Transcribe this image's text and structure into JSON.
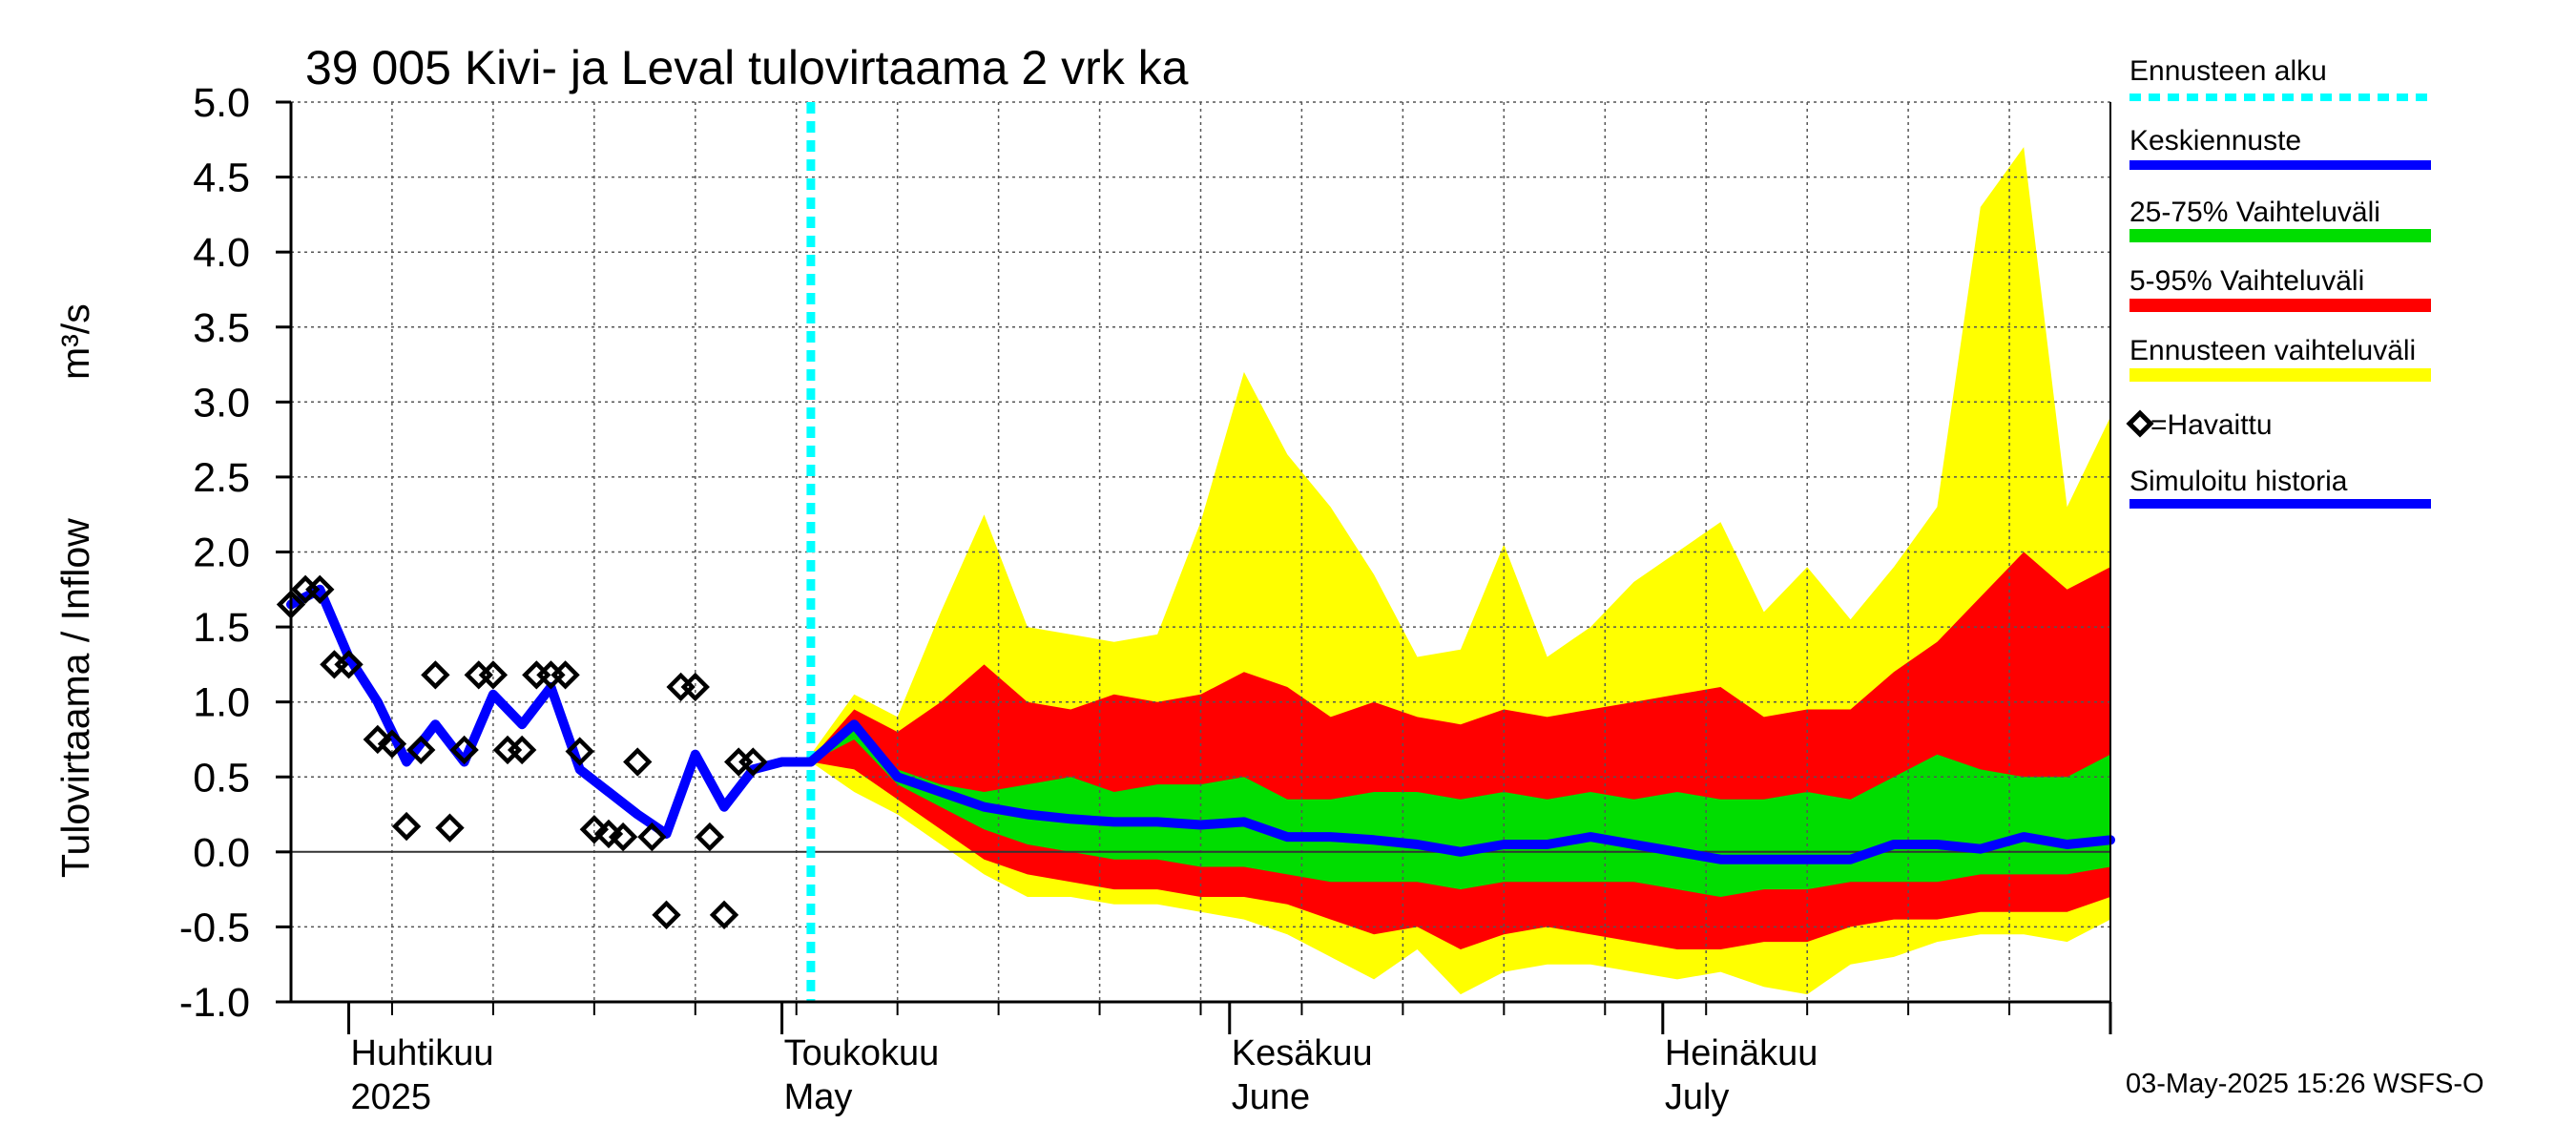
{
  "chart_data": {
    "type": "area",
    "title": "39 005 Kivi- ja Leval tulovirtaama 2 vrk ka",
    "ylabel": "Tulovirtaama / Inflow",
    "yunit": "m³/s",
    "ylim": [
      -1.0,
      5.0
    ],
    "yticks": [
      "5.0",
      "4.5",
      "4.0",
      "3.5",
      "3.0",
      "2.5",
      "2.0",
      "1.5",
      "1.0",
      "0.5",
      "0.0",
      "-0.5",
      "-1.0"
    ],
    "ytick_values": [
      5.0,
      4.5,
      4.0,
      3.5,
      3.0,
      2.5,
      2.0,
      1.5,
      1.0,
      0.5,
      0.0,
      -0.5,
      -1.0
    ],
    "xlim": [
      "2025-03-28",
      "2025-08-01"
    ],
    "month_labels": [
      {
        "date": "2025-04-01",
        "fi": "Huhtikuu",
        "en": "2025"
      },
      {
        "date": "2025-05-01",
        "fi": "Toukokuu",
        "en": "May"
      },
      {
        "date": "2025-06-01",
        "fi": "Kesäkuu",
        "en": "June"
      },
      {
        "date": "2025-07-01",
        "fi": "Heinäkuu",
        "en": "July"
      }
    ],
    "forecast_start": "2025-05-03",
    "grid": true,
    "legend_placement": "right",
    "legend": [
      {
        "label": "Ennusteen alku",
        "color": "#00ffff",
        "style": "dotted"
      },
      {
        "label": "Keskiennuste",
        "color": "#0000ff",
        "style": "line"
      },
      {
        "label": "25-75% Vaihteluväli",
        "color": "#00dd00",
        "style": "band"
      },
      {
        "label": "5-95% Vaihteluväli",
        "color": "#ff0000",
        "style": "band"
      },
      {
        "label": "Ennusteen vaihteluväli",
        "color": "#ffff00",
        "style": "band"
      },
      {
        "label": "=Havaittu",
        "color": "#000000",
        "style": "diamond"
      },
      {
        "label": "Simuloitu historia",
        "color": "#0000ff",
        "style": "line"
      }
    ],
    "footer": "03-May-2025 15:26 WSFS-O",
    "series": [
      {
        "name": "Ennusteen vaihteluväli",
        "type": "band",
        "color": "#ffff00",
        "x": [
          "2025-05-03",
          "2025-05-06",
          "2025-05-09",
          "2025-05-12",
          "2025-05-15",
          "2025-05-18",
          "2025-05-21",
          "2025-05-24",
          "2025-05-27",
          "2025-05-30",
          "2025-06-02",
          "2025-06-05",
          "2025-06-08",
          "2025-06-11",
          "2025-06-14",
          "2025-06-17",
          "2025-06-20",
          "2025-06-23",
          "2025-06-26",
          "2025-06-29",
          "2025-07-02",
          "2025-07-05",
          "2025-07-08",
          "2025-07-11",
          "2025-07-14",
          "2025-07-17",
          "2025-07-20",
          "2025-07-23",
          "2025-07-26",
          "2025-07-29",
          "2025-08-01"
        ],
        "low": [
          0.6,
          0.4,
          0.25,
          0.05,
          -0.15,
          -0.3,
          -0.3,
          -0.35,
          -0.35,
          -0.4,
          -0.45,
          -0.55,
          -0.7,
          -0.85,
          -0.65,
          -0.95,
          -0.8,
          -0.75,
          -0.75,
          -0.8,
          -0.85,
          -0.8,
          -0.9,
          -0.95,
          -0.75,
          -0.7,
          -0.6,
          -0.55,
          -0.55,
          -0.6,
          -0.45
        ],
        "high": [
          0.65,
          1.05,
          0.9,
          1.6,
          2.25,
          1.5,
          1.45,
          1.4,
          1.45,
          2.2,
          3.2,
          2.65,
          2.3,
          1.85,
          1.3,
          1.35,
          2.05,
          1.3,
          1.5,
          1.8,
          2.0,
          2.2,
          1.6,
          1.9,
          1.55,
          1.9,
          2.3,
          4.3,
          4.7,
          2.3,
          2.9
        ]
      },
      {
        "name": "5-95% Vaihteluväli",
        "type": "band",
        "color": "#ff0000",
        "x": [
          "2025-05-03",
          "2025-05-06",
          "2025-05-09",
          "2025-05-12",
          "2025-05-15",
          "2025-05-18",
          "2025-05-21",
          "2025-05-24",
          "2025-05-27",
          "2025-05-30",
          "2025-06-02",
          "2025-06-05",
          "2025-06-08",
          "2025-06-11",
          "2025-06-14",
          "2025-06-17",
          "2025-06-20",
          "2025-06-23",
          "2025-06-26",
          "2025-06-29",
          "2025-07-02",
          "2025-07-05",
          "2025-07-08",
          "2025-07-11",
          "2025-07-14",
          "2025-07-17",
          "2025-07-20",
          "2025-07-23",
          "2025-07-26",
          "2025-07-29",
          "2025-08-01"
        ],
        "low": [
          0.6,
          0.55,
          0.35,
          0.15,
          -0.05,
          -0.15,
          -0.2,
          -0.25,
          -0.25,
          -0.3,
          -0.3,
          -0.35,
          -0.45,
          -0.55,
          -0.5,
          -0.65,
          -0.55,
          -0.5,
          -0.55,
          -0.6,
          -0.65,
          -0.65,
          -0.6,
          -0.6,
          -0.5,
          -0.45,
          -0.45,
          -0.4,
          -0.4,
          -0.4,
          -0.3
        ],
        "high": [
          0.62,
          0.95,
          0.8,
          1.0,
          1.25,
          1.0,
          0.95,
          1.05,
          1.0,
          1.05,
          1.2,
          1.1,
          0.9,
          1.0,
          0.9,
          0.85,
          0.95,
          0.9,
          0.95,
          1.0,
          1.05,
          1.1,
          0.9,
          0.95,
          0.95,
          1.2,
          1.4,
          1.7,
          2.0,
          1.75,
          1.9
        ]
      },
      {
        "name": "25-75% Vaihteluväli",
        "type": "band",
        "color": "#00dd00",
        "x": [
          "2025-05-03",
          "2025-05-06",
          "2025-05-09",
          "2025-05-12",
          "2025-05-15",
          "2025-05-18",
          "2025-05-21",
          "2025-05-24",
          "2025-05-27",
          "2025-05-30",
          "2025-06-02",
          "2025-06-05",
          "2025-06-08",
          "2025-06-11",
          "2025-06-14",
          "2025-06-17",
          "2025-06-20",
          "2025-06-23",
          "2025-06-26",
          "2025-06-29",
          "2025-07-02",
          "2025-07-05",
          "2025-07-08",
          "2025-07-11",
          "2025-07-14",
          "2025-07-17",
          "2025-07-20",
          "2025-07-23",
          "2025-07-26",
          "2025-07-29",
          "2025-08-01"
        ],
        "low": [
          0.6,
          0.75,
          0.45,
          0.3,
          0.15,
          0.05,
          0.0,
          -0.05,
          -0.05,
          -0.1,
          -0.1,
          -0.15,
          -0.2,
          -0.2,
          -0.2,
          -0.25,
          -0.2,
          -0.2,
          -0.2,
          -0.2,
          -0.25,
          -0.3,
          -0.25,
          -0.25,
          -0.2,
          -0.2,
          -0.2,
          -0.15,
          -0.15,
          -0.15,
          -0.1
        ],
        "high": [
          0.62,
          0.85,
          0.55,
          0.45,
          0.4,
          0.45,
          0.5,
          0.4,
          0.45,
          0.45,
          0.5,
          0.35,
          0.35,
          0.4,
          0.4,
          0.35,
          0.4,
          0.35,
          0.4,
          0.35,
          0.4,
          0.35,
          0.35,
          0.4,
          0.35,
          0.5,
          0.65,
          0.55,
          0.5,
          0.5,
          0.65
        ]
      },
      {
        "name": "Keskiennuste",
        "type": "line",
        "color": "#0000ff",
        "x": [
          "2025-05-03",
          "2025-05-06",
          "2025-05-09",
          "2025-05-12",
          "2025-05-15",
          "2025-05-18",
          "2025-05-21",
          "2025-05-24",
          "2025-05-27",
          "2025-05-30",
          "2025-06-02",
          "2025-06-05",
          "2025-06-08",
          "2025-06-11",
          "2025-06-14",
          "2025-06-17",
          "2025-06-20",
          "2025-06-23",
          "2025-06-26",
          "2025-06-29",
          "2025-07-02",
          "2025-07-05",
          "2025-07-08",
          "2025-07-11",
          "2025-07-14",
          "2025-07-17",
          "2025-07-20",
          "2025-07-23",
          "2025-07-26",
          "2025-07-29",
          "2025-08-01"
        ],
        "values": [
          0.6,
          0.85,
          0.5,
          0.4,
          0.3,
          0.25,
          0.22,
          0.2,
          0.2,
          0.18,
          0.2,
          0.1,
          0.1,
          0.08,
          0.05,
          0.0,
          0.05,
          0.05,
          0.1,
          0.05,
          0.0,
          -0.05,
          -0.05,
          -0.05,
          -0.05,
          0.05,
          0.05,
          0.02,
          0.1,
          0.05,
          0.08
        ]
      },
      {
        "name": "Simuloitu historia",
        "type": "line",
        "color": "#0000ff",
        "x": [
          "2025-03-28",
          "2025-03-30",
          "2025-04-01",
          "2025-04-03",
          "2025-04-05",
          "2025-04-07",
          "2025-04-09",
          "2025-04-11",
          "2025-04-13",
          "2025-04-15",
          "2025-04-17",
          "2025-04-19",
          "2025-04-21",
          "2025-04-23",
          "2025-04-25",
          "2025-04-27",
          "2025-04-29",
          "2025-05-01",
          "2025-05-03"
        ],
        "values": [
          1.65,
          1.75,
          1.3,
          1.0,
          0.6,
          0.85,
          0.6,
          1.05,
          0.85,
          1.1,
          0.55,
          0.4,
          0.25,
          0.12,
          0.65,
          0.3,
          0.55,
          0.6,
          0.6
        ]
      },
      {
        "name": "Havaittu",
        "type": "scatter",
        "color": "#000000",
        "x": [
          "2025-03-28",
          "2025-03-29",
          "2025-03-30",
          "2025-03-31",
          "2025-04-01",
          "2025-04-03",
          "2025-04-04",
          "2025-04-05",
          "2025-04-06",
          "2025-04-07",
          "2025-04-08",
          "2025-04-09",
          "2025-04-10",
          "2025-04-11",
          "2025-04-12",
          "2025-04-13",
          "2025-04-14",
          "2025-04-15",
          "2025-04-16",
          "2025-04-17",
          "2025-04-18",
          "2025-04-19",
          "2025-04-20",
          "2025-04-21",
          "2025-04-22",
          "2025-04-23",
          "2025-04-24",
          "2025-04-25",
          "2025-04-26",
          "2025-04-27",
          "2025-04-28",
          "2025-04-29"
        ],
        "values": [
          1.65,
          1.75,
          1.75,
          1.25,
          1.25,
          0.75,
          0.72,
          0.17,
          0.68,
          1.18,
          0.16,
          0.68,
          1.18,
          1.18,
          0.68,
          0.68,
          1.18,
          1.18,
          1.18,
          0.67,
          0.15,
          0.12,
          0.1,
          0.6,
          0.1,
          -0.42,
          1.1,
          1.1,
          0.1,
          -0.42,
          0.6,
          0.6
        ]
      }
    ]
  }
}
